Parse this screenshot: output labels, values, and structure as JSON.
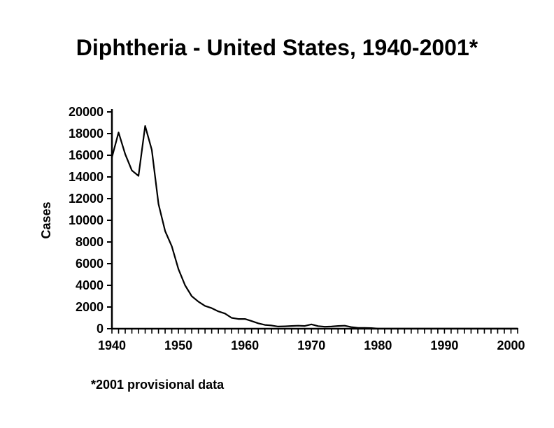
{
  "title": "Diphtheria - United States, 1940-2001*",
  "title_fontsize": 32,
  "footnote": "*2001 provisional data",
  "footnote_fontsize": 18,
  "chart": {
    "type": "line",
    "ylabel": "Cases",
    "label_fontsize": 18,
    "tick_fontsize": 18,
    "tick_fontweight": "bold",
    "background_color": "#ffffff",
    "line_color": "#000000",
    "line_width": 2.2,
    "axis_color": "#000000",
    "axis_width": 2.5,
    "xlim": [
      1940,
      2001
    ],
    "ylim": [
      0,
      20000
    ],
    "yticks": [
      0,
      2000,
      4000,
      6000,
      8000,
      10000,
      12000,
      14000,
      16000,
      18000,
      20000
    ],
    "xticks_labeled": [
      1940,
      1950,
      1960,
      1970,
      1980,
      1990,
      2000
    ],
    "xtick_step_minor": 1,
    "x": [
      1940,
      1941,
      1942,
      1943,
      1944,
      1945,
      1946,
      1947,
      1948,
      1949,
      1950,
      1951,
      1952,
      1953,
      1954,
      1955,
      1956,
      1957,
      1958,
      1959,
      1960,
      1961,
      1962,
      1963,
      1964,
      1965,
      1966,
      1967,
      1968,
      1969,
      1970,
      1971,
      1972,
      1973,
      1974,
      1975,
      1976,
      1977,
      1978,
      1979,
      1980,
      1981,
      1982,
      1983,
      1984,
      1985,
      1986,
      1987,
      1988,
      1989,
      1990,
      1991,
      1992,
      1993,
      1994,
      1995,
      1996,
      1997,
      1998,
      1999,
      2000,
      2001
    ],
    "y": [
      15800,
      18100,
      16100,
      14600,
      14100,
      18700,
      16500,
      11500,
      9000,
      7600,
      5500,
      4000,
      3000,
      2500,
      2100,
      1900,
      1600,
      1400,
      1000,
      900,
      900,
      700,
      500,
      350,
      300,
      200,
      220,
      250,
      280,
      250,
      400,
      240,
      180,
      200,
      250,
      280,
      150,
      80,
      80,
      60,
      5,
      5,
      5,
      5,
      5,
      5,
      5,
      5,
      5,
      5,
      5,
      5,
      5,
      5,
      5,
      5,
      5,
      5,
      5,
      5,
      5,
      5
    ]
  }
}
